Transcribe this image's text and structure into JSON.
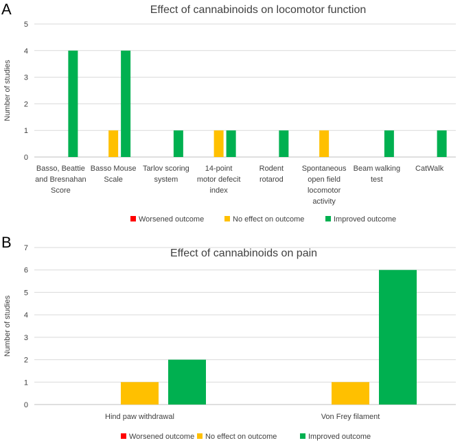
{
  "panel_labels": [
    "A",
    "B"
  ],
  "colors": {
    "Worsened outcome": "#ff0000",
    "No effect on outcome": "#ffc000",
    "Improved outcome": "#00b050"
  },
  "chart_data": [
    {
      "type": "bar",
      "title": "Effect of cannabinoids on locomotor function",
      "ylabel": "Number of studies",
      "xlabel": "",
      "ylim": [
        0,
        5
      ],
      "yticks": [
        0,
        1,
        2,
        3,
        4,
        5
      ],
      "legend_position": "bottom",
      "categories": [
        [
          "Basso, Beattie",
          "and Bresnahan",
          "Score"
        ],
        [
          "Basso Mouse",
          "Scale"
        ],
        [
          "Tarlov scoring",
          "system"
        ],
        [
          "14-point",
          "motor defecit",
          "index"
        ],
        [
          "Rodent",
          "rotarod"
        ],
        [
          "Spontaneous",
          "open field",
          "locomotor",
          "activity"
        ],
        [
          "Beam walking",
          "test"
        ],
        [
          "CatWalk"
        ]
      ],
      "series": [
        {
          "name": "Worsened outcome",
          "values": [
            0,
            0,
            0,
            0,
            0,
            0,
            0,
            0
          ]
        },
        {
          "name": "No effect on outcome",
          "values": [
            0,
            1,
            0,
            1,
            0,
            1,
            0,
            0
          ]
        },
        {
          "name": "Improved outcome",
          "values": [
            4,
            4,
            1,
            1,
            1,
            0,
            1,
            1
          ]
        }
      ]
    },
    {
      "type": "bar",
      "title": "Effect of cannabinoids on pain",
      "ylabel": "Number of studies",
      "xlabel": "",
      "ylim": [
        0,
        7
      ],
      "yticks": [
        0,
        1,
        2,
        3,
        4,
        5,
        6,
        7
      ],
      "legend_position": "bottom",
      "categories": [
        [
          "Hind paw withdrawal"
        ],
        [
          "Von Frey filament"
        ]
      ],
      "series": [
        {
          "name": "Worsened outcome",
          "values": [
            0,
            0
          ]
        },
        {
          "name": "No effect on outcome",
          "values": [
            1,
            1
          ]
        },
        {
          "name": "Improved outcome",
          "values": [
            2,
            6
          ]
        }
      ]
    }
  ]
}
